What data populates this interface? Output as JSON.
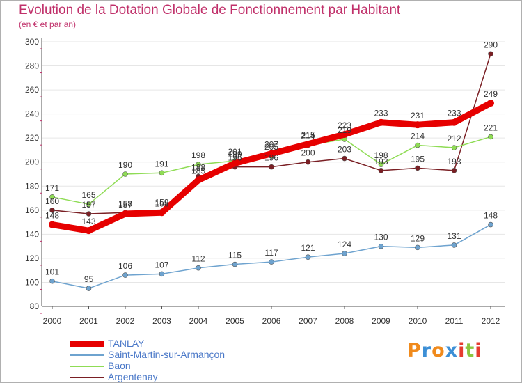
{
  "chart_data": {
    "type": "line",
    "title": "Evolution de la Dotation Globale de Fonctionnement par Habitant",
    "subtitle": "(en € et par an)",
    "x": [
      "2000",
      "2001",
      "2002",
      "2003",
      "2004",
      "2005",
      "2006",
      "2007",
      "2008",
      "2009",
      "2010",
      "2011",
      "2012"
    ],
    "ylim": [
      80,
      300
    ],
    "yticks": [
      80,
      100,
      120,
      140,
      160,
      180,
      200,
      220,
      240,
      260,
      280,
      300
    ],
    "grid": true,
    "series": [
      {
        "name": "Argentenay",
        "color": "#7a1f24",
        "values": [
          160,
          157,
          158,
          159,
          188,
          196,
          196,
          200,
          203,
          193,
          195,
          193,
          290
        ]
      },
      {
        "name": "Baon",
        "color": "#8fdc55",
        "values": [
          171,
          165,
          190,
          191,
          198,
          201,
          205,
          214,
          219,
          198,
          214,
          212,
          221
        ]
      },
      {
        "name": "Saint-Martin-sur-Armançon",
        "color": "#6ea3cf",
        "values": [
          101,
          95,
          106,
          107,
          112,
          115,
          117,
          121,
          124,
          130,
          129,
          131,
          148
        ]
      },
      {
        "name": "TANLAY",
        "color": "#e60000",
        "values": [
          148,
          143,
          157,
          158,
          185,
          199,
          207,
          215,
          223,
          233,
          231,
          233,
          249
        ]
      }
    ],
    "legend_order": [
      "TANLAY",
      "Saint-Martin-sur-Armançon",
      "Baon",
      "Argentenay"
    ]
  },
  "logo": {
    "letters": [
      "P",
      "r",
      "o",
      "x",
      "i",
      "t",
      "i"
    ],
    "colors": [
      "#f08a1c",
      "#3c8fd6",
      "#f08a1c",
      "#3c8fd6",
      "#e63c2f",
      "#8cc63f",
      "#e63c2f"
    ]
  }
}
